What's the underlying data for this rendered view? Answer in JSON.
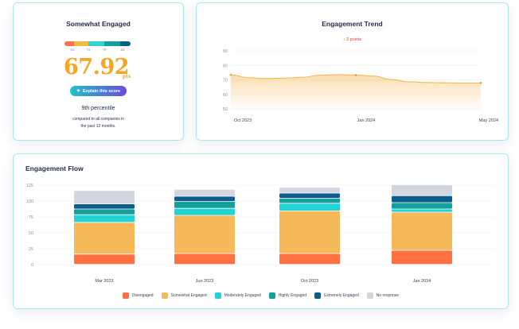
{
  "score_card": {
    "title": "Somewhat Engaged",
    "scale": {
      "ticks": [
        "64",
        "72",
        "78",
        "83"
      ],
      "segment_colors": [
        "#f2764b",
        "#f5b840",
        "#2ed4d8",
        "#159e9a",
        "#0b5e8c"
      ]
    },
    "score": "67.92",
    "unit": "pts",
    "explain_button": "Explain this score",
    "percentile": "9th percentile",
    "comparison": [
      "compared to all companies in",
      "the past 12 months."
    ]
  },
  "trend_card": {
    "title": "Engagement Trend",
    "delta": "3 points",
    "delta_color": "#e0443a",
    "line_color": "#f2b54d",
    "chart_data": {
      "type": "area",
      "ylim": [
        50,
        90
      ],
      "yticks": [
        "90",
        "80",
        "70",
        "60",
        "50"
      ],
      "x_labels": [
        "Oct 2023",
        "Jan 2024",
        "May 2024"
      ],
      "values": [
        73.5,
        71.5,
        71.0,
        71.2,
        71.8,
        73.2,
        73.6,
        73.3,
        72.6,
        70.2,
        68.7,
        68.2,
        68.0,
        67.9,
        67.9
      ],
      "markers": [
        73.5,
        73.3,
        67.9
      ]
    }
  },
  "flow_card": {
    "title": "Engagement Flow",
    "chart_data": {
      "type": "bar",
      "stacked": true,
      "ylim": [
        0,
        125
      ],
      "yticks": [
        "125",
        "100",
        "75",
        "50",
        "25",
        "0"
      ],
      "categories": [
        "Mar 2023",
        "Jun 2023",
        "Oct 2023",
        "Jan 2024"
      ],
      "series": [
        {
          "name": "Disengaged",
          "color": "#ff7043",
          "values": [
            16,
            17,
            17,
            22
          ]
        },
        {
          "name": "Somewhat Engaged",
          "color": "#f5b95a",
          "values": [
            50,
            60,
            67,
            60
          ]
        },
        {
          "name": "Moderately Engaged",
          "color": "#22d3d6",
          "values": [
            12,
            11,
            12,
            5
          ]
        },
        {
          "name": "Highly Engaged",
          "color": "#159e9a",
          "values": [
            9,
            11,
            8,
            10
          ]
        },
        {
          "name": "Extremely Engaged",
          "color": "#0b5e8c",
          "values": [
            8,
            8,
            8,
            11
          ]
        },
        {
          "name": "No response",
          "color": "#d4d6df",
          "values": [
            21,
            11,
            9,
            17
          ]
        }
      ]
    }
  }
}
